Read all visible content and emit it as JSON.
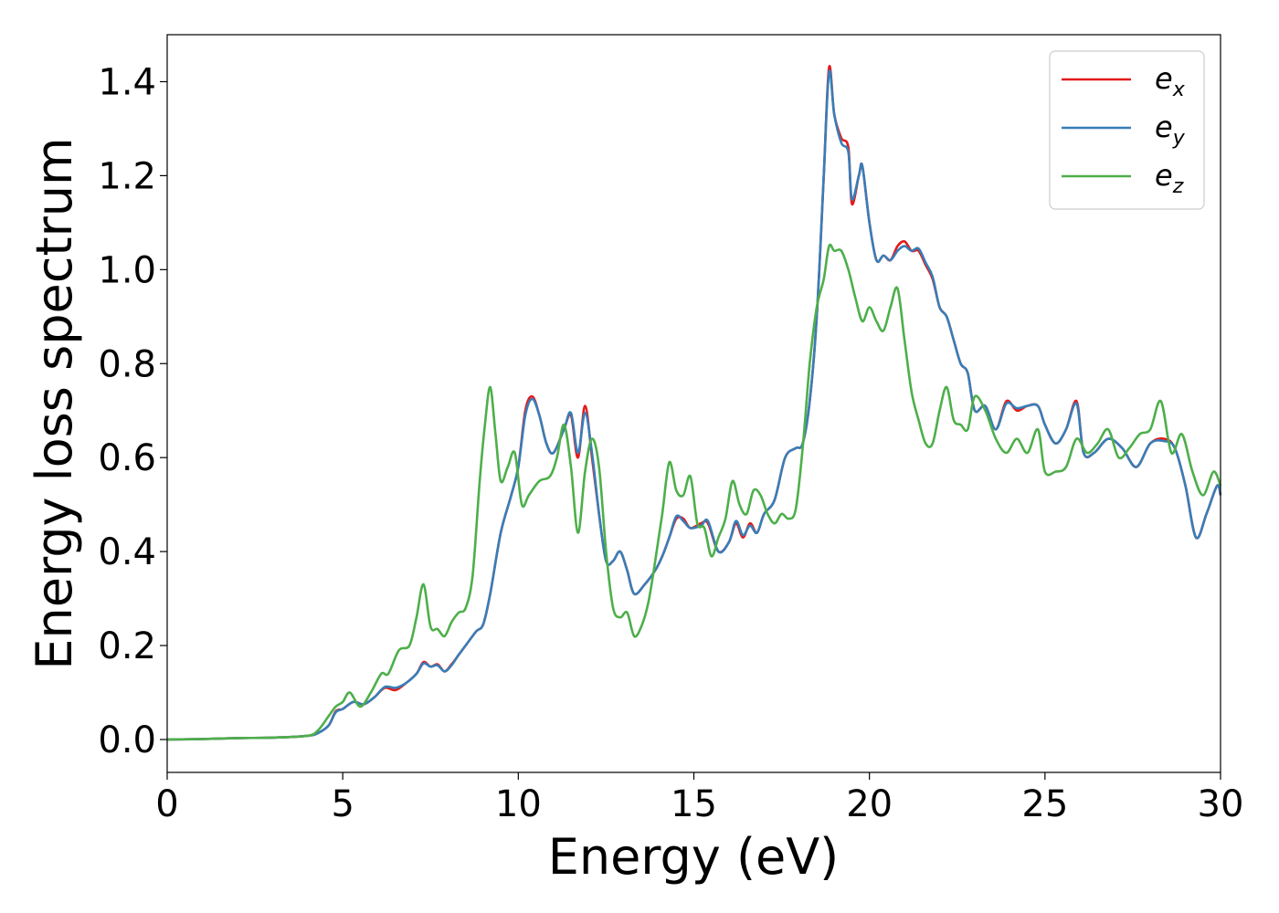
{
  "chart_data": {
    "type": "line",
    "xlabel": "Energy (eV)",
    "ylabel": "Energy loss spectrum",
    "xlim": [
      0,
      30
    ],
    "ylim": [
      -0.07,
      1.5
    ],
    "xticks": [
      0,
      5,
      10,
      15,
      20,
      25,
      30
    ],
    "yticks": [
      0.0,
      0.2,
      0.4,
      0.6,
      0.8,
      1.0,
      1.2,
      1.4
    ],
    "xtick_labels": [
      "0",
      "5",
      "10",
      "15",
      "20",
      "25",
      "30"
    ],
    "ytick_labels": [
      "0.0",
      "0.2",
      "0.4",
      "0.6",
      "0.8",
      "1.0",
      "1.2",
      "1.4"
    ],
    "grid": false,
    "legend_position": "top-right",
    "series": [
      {
        "name": "e_x",
        "label_base": "e",
        "label_sub": "x",
        "color": "#e41a1c",
        "x": [
          0,
          1,
          2,
          3,
          4,
          4.3,
          4.6,
          4.8,
          5.0,
          5.3,
          5.6,
          5.9,
          6.2,
          6.5,
          6.8,
          7.1,
          7.3,
          7.5,
          7.7,
          7.9,
          8.1,
          8.3,
          8.5,
          8.8,
          9.0,
          9.2,
          9.5,
          9.8,
          10.0,
          10.2,
          10.4,
          10.6,
          10.8,
          11.0,
          11.3,
          11.5,
          11.7,
          11.9,
          12.1,
          12.3,
          12.5,
          12.7,
          12.9,
          13.1,
          13.3,
          13.6,
          13.9,
          14.1,
          14.3,
          14.5,
          14.7,
          14.9,
          15.2,
          15.4,
          15.7,
          16.0,
          16.2,
          16.4,
          16.6,
          16.8,
          17.0,
          17.3,
          17.6,
          17.9,
          18.1,
          18.3,
          18.5,
          18.7,
          18.85,
          19.0,
          19.2,
          19.4,
          19.5,
          19.7,
          19.8,
          20.0,
          20.2,
          20.4,
          20.6,
          20.8,
          21.0,
          21.2,
          21.4,
          21.6,
          21.8,
          22.0,
          22.2,
          22.4,
          22.6,
          22.8,
          23.0,
          23.3,
          23.6,
          23.9,
          24.2,
          24.5,
          24.8,
          25.0,
          25.3,
          25.6,
          25.9,
          26.1,
          26.4,
          26.8,
          27.2,
          27.6,
          28.0,
          28.4,
          28.7,
          29.0,
          29.3,
          29.6,
          29.9,
          30.0
        ],
        "values": [
          0.0,
          0.001,
          0.003,
          0.004,
          0.008,
          0.014,
          0.03,
          0.06,
          0.065,
          0.08,
          0.075,
          0.09,
          0.11,
          0.105,
          0.12,
          0.14,
          0.165,
          0.155,
          0.16,
          0.145,
          0.16,
          0.18,
          0.2,
          0.23,
          0.245,
          0.31,
          0.44,
          0.52,
          0.58,
          0.7,
          0.73,
          0.69,
          0.63,
          0.61,
          0.66,
          0.69,
          0.6,
          0.71,
          0.6,
          0.48,
          0.38,
          0.38,
          0.4,
          0.36,
          0.31,
          0.33,
          0.36,
          0.39,
          0.43,
          0.47,
          0.47,
          0.45,
          0.46,
          0.46,
          0.4,
          0.42,
          0.46,
          0.43,
          0.46,
          0.44,
          0.48,
          0.51,
          0.6,
          0.62,
          0.63,
          0.72,
          0.9,
          1.2,
          1.43,
          1.33,
          1.28,
          1.26,
          1.14,
          1.2,
          1.22,
          1.1,
          1.02,
          1.03,
          1.02,
          1.05,
          1.06,
          1.04,
          1.04,
          1.01,
          0.98,
          0.92,
          0.9,
          0.85,
          0.8,
          0.78,
          0.7,
          0.71,
          0.66,
          0.72,
          0.7,
          0.71,
          0.71,
          0.67,
          0.63,
          0.66,
          0.72,
          0.61,
          0.61,
          0.64,
          0.62,
          0.58,
          0.63,
          0.64,
          0.62,
          0.54,
          0.43,
          0.48,
          0.54,
          0.52
        ]
      },
      {
        "name": "e_y",
        "label_base": "e",
        "label_sub": "y",
        "color": "#377eb8",
        "x": [
          0,
          1,
          2,
          3,
          4,
          4.3,
          4.6,
          4.8,
          5.0,
          5.3,
          5.6,
          5.9,
          6.2,
          6.5,
          6.8,
          7.1,
          7.3,
          7.5,
          7.7,
          7.9,
          8.1,
          8.3,
          8.5,
          8.8,
          9.0,
          9.2,
          9.5,
          9.8,
          10.0,
          10.2,
          10.4,
          10.6,
          10.8,
          11.0,
          11.3,
          11.5,
          11.7,
          11.9,
          12.1,
          12.3,
          12.5,
          12.7,
          12.9,
          13.1,
          13.3,
          13.6,
          13.9,
          14.1,
          14.3,
          14.5,
          14.7,
          14.9,
          15.2,
          15.4,
          15.7,
          16.0,
          16.2,
          16.4,
          16.6,
          16.8,
          17.0,
          17.3,
          17.6,
          17.9,
          18.1,
          18.3,
          18.5,
          18.7,
          18.85,
          19.0,
          19.2,
          19.4,
          19.5,
          19.7,
          19.8,
          20.0,
          20.2,
          20.4,
          20.6,
          20.8,
          21.0,
          21.2,
          21.4,
          21.6,
          21.8,
          22.0,
          22.2,
          22.4,
          22.6,
          22.8,
          23.0,
          23.3,
          23.6,
          23.9,
          24.2,
          24.5,
          24.8,
          25.0,
          25.3,
          25.6,
          25.9,
          26.1,
          26.4,
          26.8,
          27.2,
          27.6,
          28.0,
          28.4,
          28.7,
          29.0,
          29.3,
          29.6,
          29.9,
          30.0
        ],
        "values": [
          0.0,
          0.001,
          0.003,
          0.004,
          0.008,
          0.014,
          0.03,
          0.058,
          0.065,
          0.08,
          0.075,
          0.09,
          0.112,
          0.11,
          0.12,
          0.14,
          0.162,
          0.155,
          0.158,
          0.145,
          0.158,
          0.18,
          0.2,
          0.23,
          0.245,
          0.31,
          0.44,
          0.52,
          0.58,
          0.69,
          0.725,
          0.69,
          0.63,
          0.61,
          0.66,
          0.695,
          0.61,
          0.695,
          0.61,
          0.48,
          0.38,
          0.38,
          0.4,
          0.36,
          0.31,
          0.33,
          0.36,
          0.39,
          0.43,
          0.475,
          0.465,
          0.45,
          0.455,
          0.465,
          0.4,
          0.42,
          0.465,
          0.435,
          0.455,
          0.44,
          0.48,
          0.51,
          0.6,
          0.62,
          0.63,
          0.72,
          0.9,
          1.2,
          1.42,
          1.33,
          1.27,
          1.25,
          1.15,
          1.2,
          1.22,
          1.1,
          1.02,
          1.03,
          1.02,
          1.04,
          1.05,
          1.04,
          1.045,
          1.015,
          0.985,
          0.92,
          0.9,
          0.85,
          0.8,
          0.78,
          0.7,
          0.71,
          0.66,
          0.715,
          0.705,
          0.71,
          0.71,
          0.67,
          0.63,
          0.66,
          0.715,
          0.61,
          0.61,
          0.64,
          0.62,
          0.58,
          0.63,
          0.635,
          0.62,
          0.54,
          0.43,
          0.48,
          0.54,
          0.52
        ]
      },
      {
        "name": "e_z",
        "label_base": "e",
        "label_sub": "z",
        "color": "#4daf4a",
        "x": [
          0,
          1,
          2,
          3,
          4,
          4.3,
          4.6,
          4.8,
          5.0,
          5.2,
          5.5,
          5.8,
          6.1,
          6.3,
          6.6,
          6.9,
          7.1,
          7.3,
          7.5,
          7.7,
          7.9,
          8.1,
          8.3,
          8.5,
          8.7,
          8.9,
          9.05,
          9.2,
          9.35,
          9.5,
          9.7,
          9.9,
          10.1,
          10.3,
          10.6,
          10.9,
          11.1,
          11.3,
          11.5,
          11.7,
          11.9,
          12.1,
          12.3,
          12.5,
          12.7,
          12.9,
          13.1,
          13.3,
          13.5,
          13.7,
          13.9,
          14.1,
          14.3,
          14.5,
          14.7,
          14.9,
          15.1,
          15.3,
          15.5,
          15.7,
          15.9,
          16.1,
          16.3,
          16.5,
          16.7,
          16.9,
          17.1,
          17.3,
          17.5,
          17.7,
          17.9,
          18.1,
          18.3,
          18.5,
          18.7,
          18.85,
          19.0,
          19.2,
          19.4,
          19.6,
          19.8,
          20.0,
          20.2,
          20.4,
          20.6,
          20.8,
          21.0,
          21.2,
          21.4,
          21.6,
          21.8,
          22.0,
          22.2,
          22.4,
          22.6,
          22.8,
          23.0,
          23.3,
          23.6,
          23.9,
          24.2,
          24.5,
          24.8,
          25.0,
          25.3,
          25.6,
          25.9,
          26.2,
          26.5,
          26.8,
          27.1,
          27.4,
          27.7,
          28.0,
          28.3,
          28.6,
          28.9,
          29.2,
          29.5,
          29.8,
          30.0
        ],
        "values": [
          0.0,
          0.001,
          0.003,
          0.004,
          0.008,
          0.02,
          0.05,
          0.07,
          0.08,
          0.1,
          0.07,
          0.1,
          0.14,
          0.14,
          0.19,
          0.2,
          0.26,
          0.33,
          0.24,
          0.235,
          0.22,
          0.25,
          0.27,
          0.28,
          0.35,
          0.55,
          0.67,
          0.75,
          0.65,
          0.55,
          0.58,
          0.61,
          0.5,
          0.52,
          0.55,
          0.56,
          0.6,
          0.67,
          0.58,
          0.44,
          0.57,
          0.64,
          0.58,
          0.4,
          0.28,
          0.26,
          0.27,
          0.22,
          0.24,
          0.29,
          0.38,
          0.48,
          0.59,
          0.53,
          0.52,
          0.56,
          0.46,
          0.45,
          0.39,
          0.43,
          0.47,
          0.55,
          0.5,
          0.48,
          0.53,
          0.52,
          0.48,
          0.46,
          0.48,
          0.47,
          0.49,
          0.62,
          0.8,
          0.92,
          0.98,
          1.05,
          1.04,
          1.04,
          1.0,
          0.94,
          0.89,
          0.92,
          0.89,
          0.87,
          0.92,
          0.96,
          0.85,
          0.74,
          0.68,
          0.63,
          0.63,
          0.7,
          0.75,
          0.68,
          0.67,
          0.66,
          0.73,
          0.7,
          0.64,
          0.61,
          0.64,
          0.61,
          0.66,
          0.57,
          0.57,
          0.58,
          0.64,
          0.61,
          0.63,
          0.66,
          0.6,
          0.62,
          0.65,
          0.66,
          0.72,
          0.61,
          0.65,
          0.57,
          0.52,
          0.57,
          0.54
        ]
      }
    ]
  }
}
